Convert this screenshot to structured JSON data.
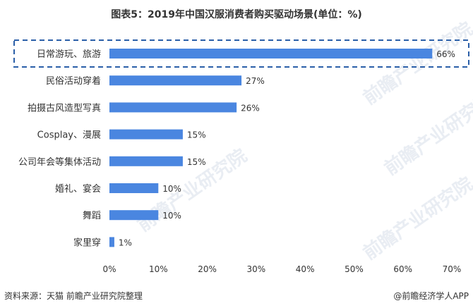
{
  "chart_data": {
    "type": "bar",
    "orientation": "horizontal",
    "title": "图表5：2019年中国汉服消费者购买驱动场景(单位：%)",
    "categories": [
      "日常游玩、旅游",
      "民俗活动穿着",
      "拍摄古风造型写真",
      "Cosplay、漫展",
      "公司年会等集体活动",
      "婚礼、宴会",
      "舞蹈",
      "家里穿"
    ],
    "values": [
      66,
      27,
      26,
      15,
      15,
      10,
      10,
      1
    ],
    "value_labels": [
      "66%",
      "27%",
      "26%",
      "15%",
      "15%",
      "10%",
      "10%",
      "1%"
    ],
    "xlim": [
      0,
      70
    ],
    "xticks": [
      0,
      10,
      20,
      30,
      40,
      50,
      60,
      70
    ],
    "xtick_labels": [
      "0%",
      "10%",
      "20%",
      "30%",
      "40%",
      "50%",
      "60%",
      "70%"
    ],
    "xlabel": "",
    "ylabel": "",
    "highlighted_category": "日常游玩、旅游",
    "bar_color": "#4a86e0",
    "highlight_border_color": "#2b5fa8"
  },
  "footer": {
    "source": "资料来源：天猫 前瞻产业研究院整理",
    "brand": "@前瞻经济学人APP"
  },
  "watermark": {
    "text": "前瞻产业研究院"
  }
}
